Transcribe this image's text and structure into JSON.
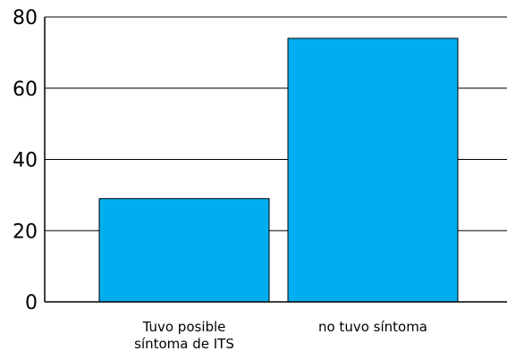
{
  "chart_data": {
    "type": "bar",
    "categories": [
      [
        "Tuvo posible",
        "síntoma de ITS"
      ],
      [
        "no tuvo síntoma"
      ]
    ],
    "values": [
      29,
      74
    ],
    "ylim": [
      0,
      80
    ],
    "yticks": [
      0,
      20,
      40,
      60,
      80
    ],
    "grid": true,
    "bar_color": "#00AEEF",
    "bar_edge_color": "#000000",
    "title": "",
    "xlabel": "",
    "ylabel": ""
  }
}
